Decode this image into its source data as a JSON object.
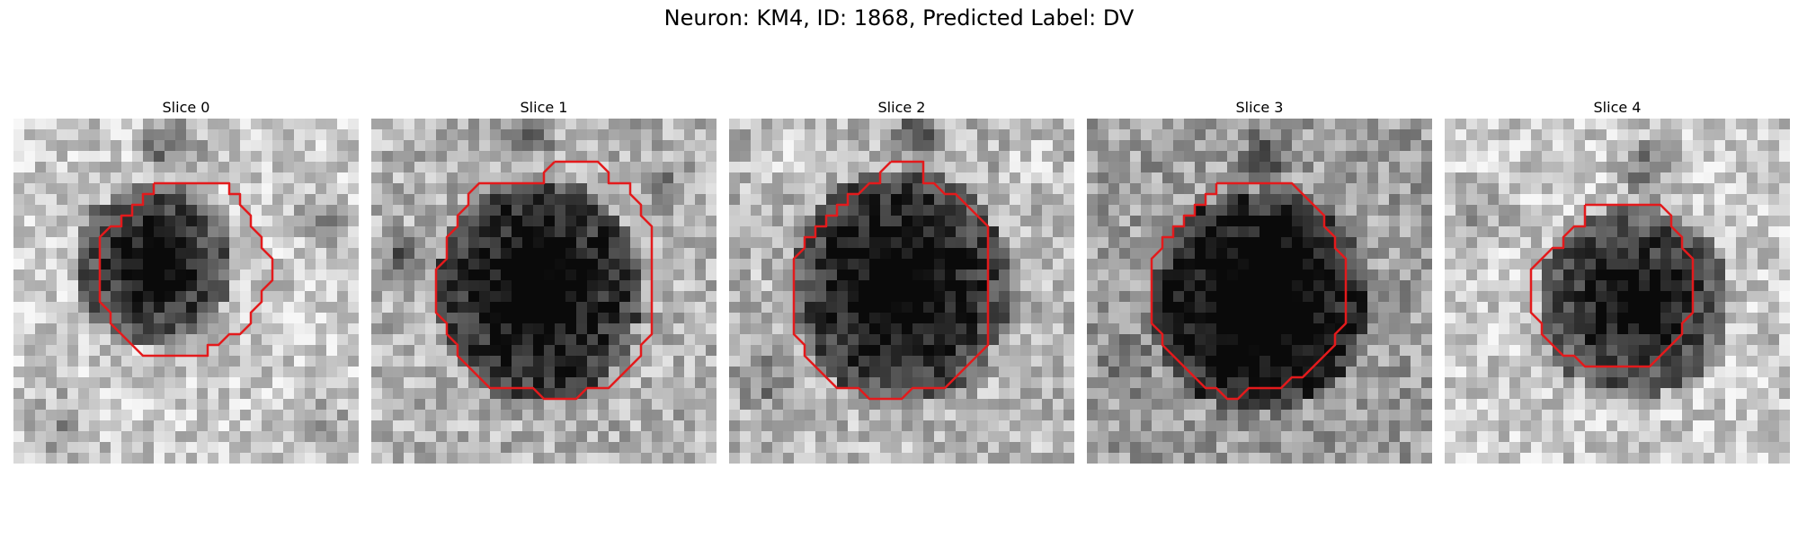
{
  "figure": {
    "title": "Neuron: KM4, ID: 1868, Predicted Label: DV",
    "contour_color": "#e31a1c",
    "colormap": "grayscale"
  },
  "panels": [
    {
      "title": "Slice 0"
    },
    {
      "title": "Slice 1"
    },
    {
      "title": "Slice 2"
    },
    {
      "title": "Slice 3"
    },
    {
      "title": "Slice 4"
    }
  ]
}
